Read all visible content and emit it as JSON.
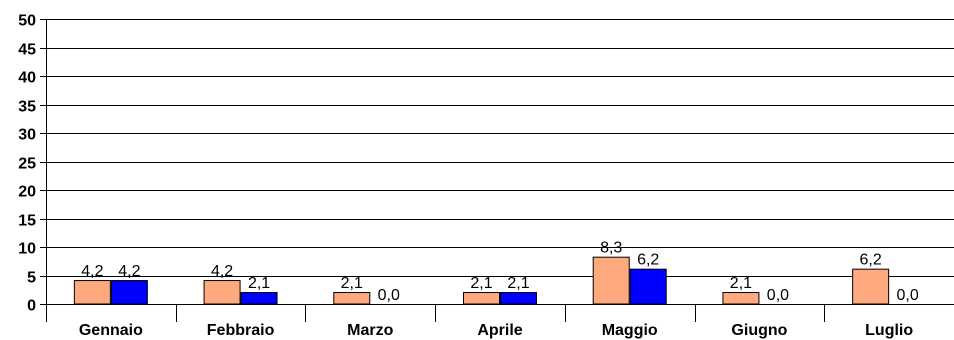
{
  "chart_data": {
    "type": "bar",
    "categories": [
      "Gennaio",
      "Febbraio",
      "Marzo",
      "Aprile",
      "Maggio",
      "Giugno",
      "Luglio"
    ],
    "series": [
      {
        "values": [
          4.2,
          4.2,
          2.1,
          2.1,
          8.3,
          2.1,
          6.2
        ],
        "labels": [
          "4,2",
          "4,2",
          "2,1",
          "2,1",
          "8,3",
          "2,1",
          "6,2"
        ],
        "color": "#ffa97e"
      },
      {
        "values": [
          4.2,
          2.1,
          0.0,
          2.1,
          6.2,
          0.0,
          0.0
        ],
        "labels": [
          "4,2",
          "2,1",
          "0,0",
          "2,1",
          "6,2",
          "0,0",
          "0,0"
        ],
        "color": "#0000ff"
      }
    ],
    "ylim": [
      0,
      50
    ],
    "yticks": [
      "0",
      "5",
      "10",
      "15",
      "20",
      "25",
      "30",
      "35",
      "40",
      "45",
      "50"
    ],
    "grid": true,
    "title": "",
    "xlabel": "",
    "ylabel": ""
  }
}
